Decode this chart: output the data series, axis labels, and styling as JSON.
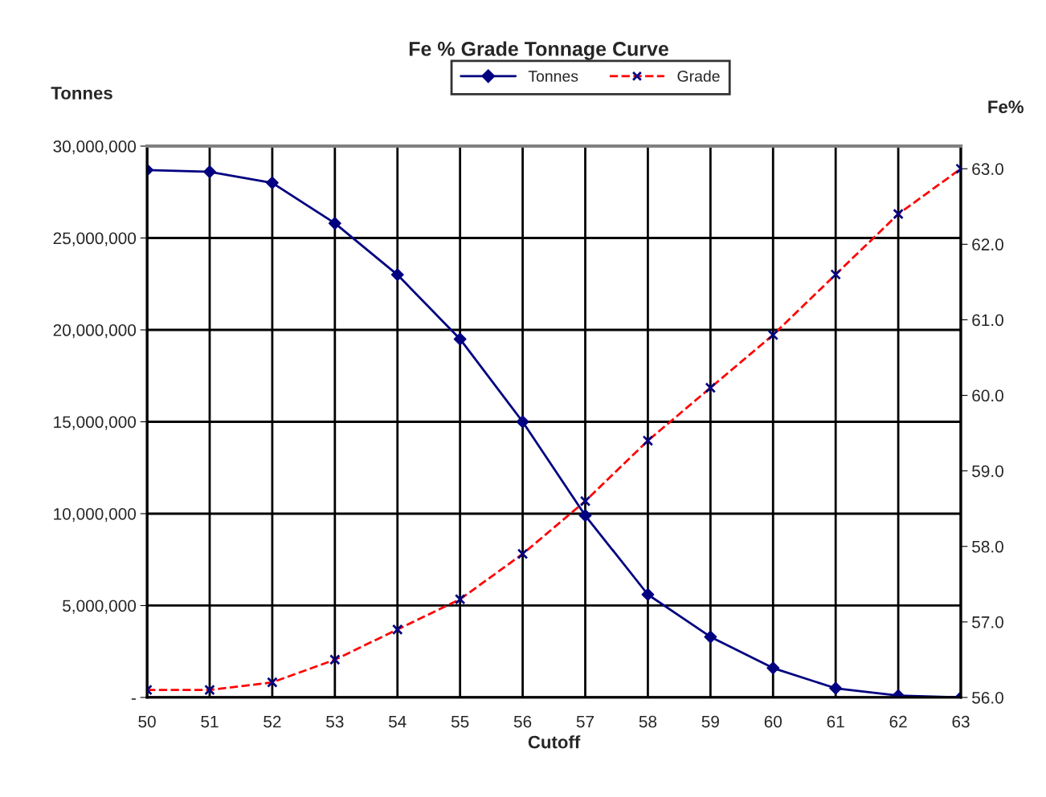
{
  "chart_data": {
    "type": "line",
    "title": "Fe % Grade Tonnage Curve",
    "xlabel": "Cutoff",
    "ylabel": "Tonnes",
    "y2label": "Fe%",
    "x": [
      50,
      51,
      52,
      53,
      54,
      55,
      56,
      57,
      58,
      59,
      60,
      61,
      62,
      63
    ],
    "series": [
      {
        "name": "Tonnes",
        "color": "#000080",
        "marker": "diamond",
        "line_style": "solid",
        "values": [
          28700000,
          28600000,
          28000000,
          25800000,
          23000000,
          19500000,
          15000000,
          9900000,
          5600000,
          3300000,
          1600000,
          500000,
          100000,
          0
        ]
      },
      {
        "name": "Grade",
        "color": "#ff0000",
        "colors": [
          "#000080",
          "#000080",
          "#000080",
          "#000080",
          "#000080",
          "#000080",
          "#000080",
          "#000080",
          "#000080",
          "#000080",
          "#000080",
          "#000080",
          "#000080",
          "#000080"
        ],
        "marker": "cross",
        "line_style": "dashed",
        "axis": "y2",
        "values": [
          56.1,
          56.1,
          56.2,
          56.5,
          56.9,
          57.3,
          57.9,
          58.6,
          59.4,
          60.1,
          60.8,
          61.6,
          62.4,
          63.0
        ]
      }
    ],
    "xlim": [
      50,
      63
    ],
    "xticks": [
      50,
      51,
      52,
      53,
      54,
      55,
      56,
      57,
      58,
      59,
      60,
      61,
      62,
      63
    ],
    "ylim": [
      0,
      30000000
    ],
    "yticks": [
      {
        "value": 0,
        "label": "-"
      },
      {
        "value": 5000000,
        "label": "5,000,000"
      },
      {
        "value": 10000000,
        "label": "10,000,000"
      },
      {
        "value": 15000000,
        "label": "15,000,000"
      },
      {
        "value": 20000000,
        "label": "20,000,000"
      },
      {
        "value": 25000000,
        "label": "25,000,000"
      },
      {
        "value": 30000000,
        "label": "30,000,000"
      }
    ],
    "y2lim": [
      56,
      63.3
    ],
    "y2ticks": [
      {
        "value": 56,
        "label": "56.0"
      },
      {
        "value": 57,
        "label": "57.0"
      },
      {
        "value": 58,
        "label": "58.0"
      },
      {
        "value": 59,
        "label": "59.0"
      },
      {
        "value": 60,
        "label": "60.0"
      },
      {
        "value": 61,
        "label": "61.0"
      },
      {
        "value": 62,
        "label": "62.0"
      },
      {
        "value": 63,
        "label": "63.0"
      }
    ],
    "grid": true,
    "legend": "top"
  }
}
